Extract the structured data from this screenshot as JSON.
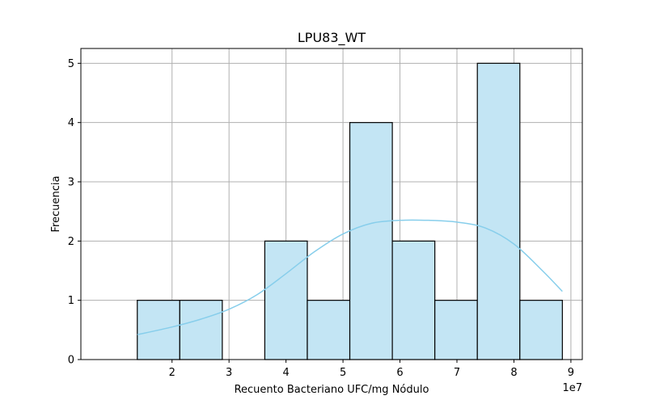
{
  "chart_data": {
    "type": "bar",
    "subtype": "histogram",
    "title": "LPU83_WT",
    "xlabel": "Recuento Bacteriano UFC/mg Nódulo",
    "ylabel": "Frecuencia",
    "x_offset_label": "1e7",
    "x_scale": 10000000,
    "xlim": [
      0.4,
      9.2
    ],
    "ylim": [
      0,
      5.25
    ],
    "x_ticks": [
      2,
      3,
      4,
      5,
      6,
      7,
      8,
      9
    ],
    "y_ticks": [
      0,
      1,
      2,
      3,
      4,
      5
    ],
    "grid": true,
    "bin_edges": [
      1.39,
      2.136,
      2.882,
      3.628,
      4.374,
      5.12,
      5.866,
      6.612,
      7.358,
      8.104,
      8.85
    ],
    "counts": [
      1,
      1,
      0,
      2,
      1,
      4,
      2,
      1,
      5,
      1
    ],
    "kde": {
      "x": [
        1.39,
        2.0,
        2.5,
        3.0,
        3.5,
        4.0,
        4.5,
        5.0,
        5.5,
        6.0,
        6.5,
        7.0,
        7.5,
        8.0,
        8.5,
        8.85
      ],
      "y": [
        0.42,
        0.55,
        0.68,
        0.85,
        1.1,
        1.45,
        1.82,
        2.12,
        2.3,
        2.35,
        2.35,
        2.32,
        2.22,
        1.95,
        1.5,
        1.15
      ]
    },
    "colors": {
      "bar_fill": "#c3e5f4",
      "bar_edge": "#000000",
      "kde_line": "#87ceeb",
      "grid": "#b0b0b0"
    }
  }
}
